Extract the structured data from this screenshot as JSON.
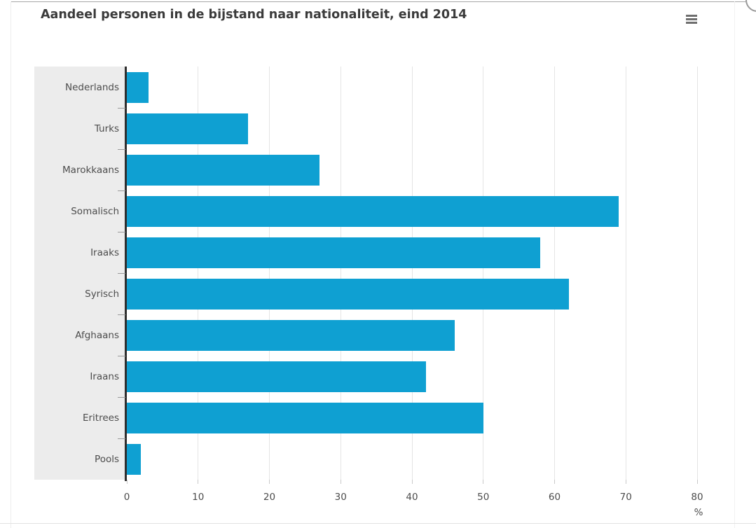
{
  "chart": {
    "export_menu_icon": "hamburger-icon"
  },
  "chart_data": {
    "type": "bar",
    "orientation": "horizontal",
    "title": "Aandeel personen in de bijstand naar nationaliteit, eind 2014",
    "categories": [
      "Nederlands",
      "Turks",
      "Marokkaans",
      "Somalisch",
      "Iraaks",
      "Syrisch",
      "Afghaans",
      "Iraans",
      "Eritrees",
      "Pools"
    ],
    "values": [
      3,
      17,
      27,
      69,
      58,
      62,
      46,
      42,
      50,
      2
    ],
    "xlabel": "%",
    "ylabel": "",
    "xlim": [
      0,
      80
    ],
    "xticks": [
      0,
      10,
      20,
      30,
      40,
      50,
      60,
      70,
      80
    ],
    "grid": true,
    "legend": "none",
    "bar_color": "#0FA0D2",
    "category_band_color": "#ececec",
    "gridline_color": "#e4e4e4",
    "axis_line_color": "#2e2e2e",
    "title_color": "#3b3b3b",
    "label_color": "#4c4c4c"
  }
}
